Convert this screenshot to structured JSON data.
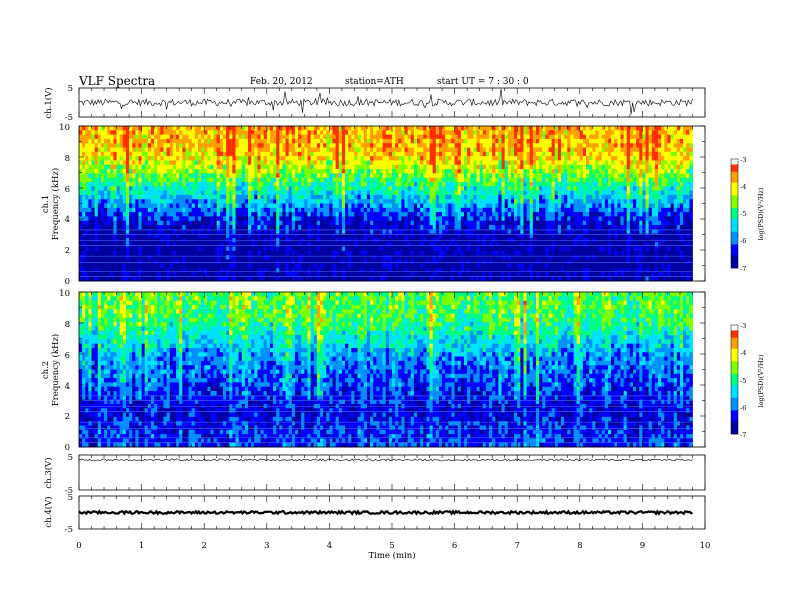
{
  "header": {
    "title": "VLF  Spectra",
    "date": "Feb. 20, 2012",
    "station": "station=ATH",
    "start_ut": "start  UT  =   7 : 30 : 0"
  },
  "panels": {
    "ch1_wave": {
      "ylabel": "ch.1(V)",
      "yticks": [
        "5",
        "-5"
      ]
    },
    "ch1_spec": {
      "ylabel_top": "ch.1",
      "ylabel": "Frequency  (kHz)",
      "yticks": [
        "10",
        "8",
        "6",
        "4",
        "2",
        "0"
      ]
    },
    "ch2_spec": {
      "ylabel_top": "ch.2",
      "ylabel": "Frequency  (kHz)",
      "yticks": [
        "10",
        "8",
        "6",
        "4",
        "2",
        "0"
      ]
    },
    "ch3_wave": {
      "ylabel": "ch.3(V)",
      "yticks": [
        "5",
        "-5"
      ]
    },
    "ch4_wave": {
      "ylabel": "ch.4(V)",
      "yticks": [
        "5",
        "-5"
      ]
    }
  },
  "xaxis": {
    "label": "Time  (min)",
    "ticks": [
      "0",
      "1",
      "2",
      "3",
      "4",
      "5",
      "6",
      "7",
      "8",
      "9",
      "10"
    ]
  },
  "colorbar": {
    "label": "log(PSD)(V²/Hz)",
    "ticks": [
      "-3",
      "-4",
      "-5",
      "-6",
      "-7"
    ]
  },
  "colors": {
    "scale": [
      "#000000",
      "#0000a0",
      "#0000ff",
      "#0090ff",
      "#00e0ff",
      "#00ff80",
      "#80ff00",
      "#ffff00",
      "#ffa000",
      "#ff3000",
      "#ffffff"
    ]
  },
  "chart_data": [
    {
      "type": "line",
      "name": "ch1_waveform",
      "x_range_min": [
        0,
        10
      ],
      "ylim": [
        -5,
        5
      ],
      "data_end_min": 9.8,
      "mean_level_V": 0,
      "noise_amplitude_V": 1.2
    },
    {
      "type": "heatmap",
      "name": "ch1_spectrogram",
      "x_range_min": [
        0,
        10
      ],
      "ylim_khz": [
        0,
        10
      ],
      "clim_log_psd": [
        -7,
        -3
      ],
      "profile_khz": [
        0,
        1,
        2,
        3,
        4,
        5,
        6,
        7,
        8,
        9,
        10
      ],
      "profile_log_psd": [
        -6.8,
        -6.9,
        -6.9,
        -6.8,
        -6.4,
        -5.8,
        -5.2,
        -4.6,
        -4.0,
        -3.8,
        -3.8
      ]
    },
    {
      "type": "heatmap",
      "name": "ch2_spectrogram",
      "x_range_min": [
        0,
        10
      ],
      "ylim_khz": [
        0,
        10
      ],
      "clim_log_psd": [
        -7,
        -3
      ],
      "profile_khz": [
        0,
        1,
        2,
        3,
        4,
        5,
        6,
        7,
        8,
        9,
        10
      ],
      "profile_log_psd": [
        -6.2,
        -6.3,
        -6.5,
        -6.4,
        -6.2,
        -6.0,
        -5.8,
        -5.4,
        -5.0,
        -4.8,
        -4.8
      ]
    },
    {
      "type": "line",
      "name": "ch3_waveform",
      "x_range_min": [
        0,
        10
      ],
      "ylim": [
        -5,
        5
      ],
      "data_end_min": 9.8,
      "mean_level_V": 3.6,
      "noise_amplitude_V": 0.3
    },
    {
      "type": "line",
      "name": "ch4_waveform",
      "x_range_min": [
        0,
        10
      ],
      "ylim": [
        -5,
        5
      ],
      "data_end_min": 9.8,
      "mean_level_V": 0,
      "noise_amplitude_V": 0.4
    }
  ]
}
